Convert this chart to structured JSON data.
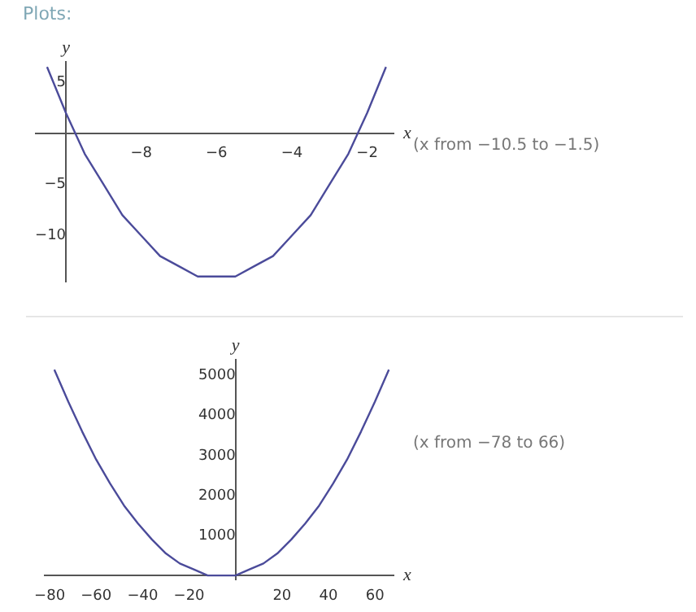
{
  "chart_data": [
    {
      "type": "line",
      "title": "Plots:",
      "xlabel": "x",
      "ylabel": "y",
      "annotations": [
        "(x from −10.5 to −1.5)"
      ],
      "grid": false,
      "marker": "none",
      "x": [
        -10.5,
        -10,
        -9.5,
        -9,
        -8.5,
        -8,
        -7.5,
        -7,
        -6.5,
        -6,
        -5.5,
        -5,
        -4.5,
        -4,
        -3.5,
        -3,
        -2.5,
        -2,
        -1.5
      ],
      "series": [
        {
          "color": "#4b4b9a",
          "values": [
            6.5,
            2,
            -2,
            -5,
            -8,
            -10,
            -12,
            -13,
            -14,
            -14,
            -14,
            -13,
            -12,
            -10,
            -8,
            -5,
            -2,
            2,
            6.5
          ]
        }
      ],
      "xlim": [
        -10.8,
        -1.3
      ],
      "ylim": [
        -14.5,
        7
      ],
      "xticks": [
        {
          "value": -8,
          "label": "−8"
        },
        {
          "value": -6,
          "label": "−6"
        },
        {
          "value": -4,
          "label": "−4"
        },
        {
          "value": -2,
          "label": "−2"
        }
      ],
      "yticks": [
        {
          "value": -10,
          "label": "−10"
        },
        {
          "value": -5,
          "label": "−5"
        },
        5
      ]
    },
    {
      "type": "line",
      "xlabel": "x",
      "ylabel": "y",
      "annotations": [
        "(x from −78 to 66)"
      ],
      "grid": false,
      "marker": "none",
      "x": [
        -78,
        -72,
        -66,
        -60,
        -54,
        -48,
        -42,
        -36,
        -30,
        -24,
        -18,
        -12,
        -6,
        0,
        6,
        12,
        18,
        24,
        30,
        36,
        42,
        48,
        54,
        60,
        66
      ],
      "series": [
        {
          "color": "#4b4b9a",
          "values": [
            5150,
            4350,
            3600,
            2900,
            2300,
            1750,
            1300,
            900,
            550,
            300,
            150,
            0,
            0,
            0,
            150,
            300,
            550,
            900,
            1300,
            1750,
            2300,
            2900,
            3600,
            4350,
            5150
          ]
        }
      ],
      "xlim": [
        -82,
        68
      ],
      "ylim": [
        -100,
        5400
      ],
      "xticks": [
        {
          "value": -80,
          "label": "−80"
        },
        {
          "value": -60,
          "label": "−60"
        },
        {
          "value": -40,
          "label": "−40"
        },
        {
          "value": -20,
          "label": "−20"
        },
        20,
        40,
        60
      ],
      "yticks": [
        1000,
        2000,
        3000,
        4000,
        5000
      ]
    }
  ]
}
